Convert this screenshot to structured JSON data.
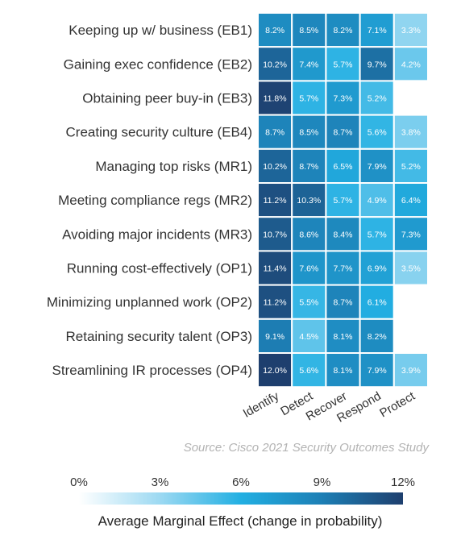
{
  "chart_data": {
    "type": "heatmap",
    "rows": [
      "Keeping up w/ business (EB1)",
      "Gaining exec confidence (EB2)",
      "Obtaining peer buy-in (EB3)",
      "Creating security culture (EB4)",
      "Managing top risks (MR1)",
      "Meeting compliance regs (MR2)",
      "Avoiding major incidents (MR3)",
      "Running cost-effectively (OP1)",
      "Minimizing unplanned work (OP2)",
      "Retaining security talent (OP3)",
      "Streamlining IR processes (OP4)"
    ],
    "columns": [
      "Identify",
      "Detect",
      "Recover",
      "Respond",
      "Protect"
    ],
    "values": [
      [
        8.2,
        8.5,
        8.2,
        7.1,
        3.3
      ],
      [
        10.2,
        7.4,
        5.7,
        9.7,
        4.2
      ],
      [
        11.8,
        5.7,
        7.3,
        5.2,
        null
      ],
      [
        8.7,
        8.5,
        8.7,
        5.6,
        3.8
      ],
      [
        10.2,
        8.7,
        6.5,
        7.9,
        5.2
      ],
      [
        11.2,
        10.3,
        5.7,
        4.9,
        6.4
      ],
      [
        10.7,
        8.6,
        8.4,
        5.7,
        7.3
      ],
      [
        11.4,
        7.6,
        7.7,
        6.9,
        3.5
      ],
      [
        11.2,
        5.5,
        8.7,
        6.1,
        null
      ],
      [
        9.1,
        4.5,
        8.1,
        8.2,
        null
      ],
      [
        12.0,
        5.6,
        8.1,
        7.9,
        3.9
      ]
    ],
    "cell_labels": [
      [
        "8.2%",
        "8.5%",
        "8.2%",
        "7.1%",
        "3.3%"
      ],
      [
        "10.2%",
        "7.4%",
        "5.7%",
        "9.7%",
        "4.2%"
      ],
      [
        "11.8%",
        "5.7%",
        "7.3%",
        "5.2%",
        ""
      ],
      [
        "8.7%",
        "8.5%",
        "8.7%",
        "5.6%",
        "3.8%"
      ],
      [
        "10.2%",
        "8.7%",
        "6.5%",
        "7.9%",
        "5.2%"
      ],
      [
        "11.2%",
        "10.3%",
        "5.7%",
        "4.9%",
        "6.4%"
      ],
      [
        "10.7%",
        "8.6%",
        "8.4%",
        "5.7%",
        "7.3%"
      ],
      [
        "11.4%",
        "7.6%",
        "7.7%",
        "6.9%",
        "3.5%"
      ],
      [
        "11.2%",
        "5.5%",
        "8.7%",
        "6.1%",
        ""
      ],
      [
        "9.1%",
        "4.5%",
        "8.1%",
        "8.2%",
        ""
      ],
      [
        "12.0%",
        "5.6%",
        "8.1%",
        "7.9%",
        "3.9%"
      ]
    ],
    "color_scale": {
      "min": 0,
      "max": 12,
      "tick_labels": [
        "0%",
        "3%",
        "6%",
        "9%",
        "12%"
      ],
      "title": "Average Marginal Effect (change in probability)",
      "colors": [
        "#ffffff",
        "#9cd9f2",
        "#22afe2",
        "#1d7fb5",
        "#1e3f6e"
      ]
    },
    "source": "Source: Cisco 2021 Security Outcomes Study",
    "empty_cell_color": "#ffffff",
    "cell_border_color": "#ffffff"
  }
}
